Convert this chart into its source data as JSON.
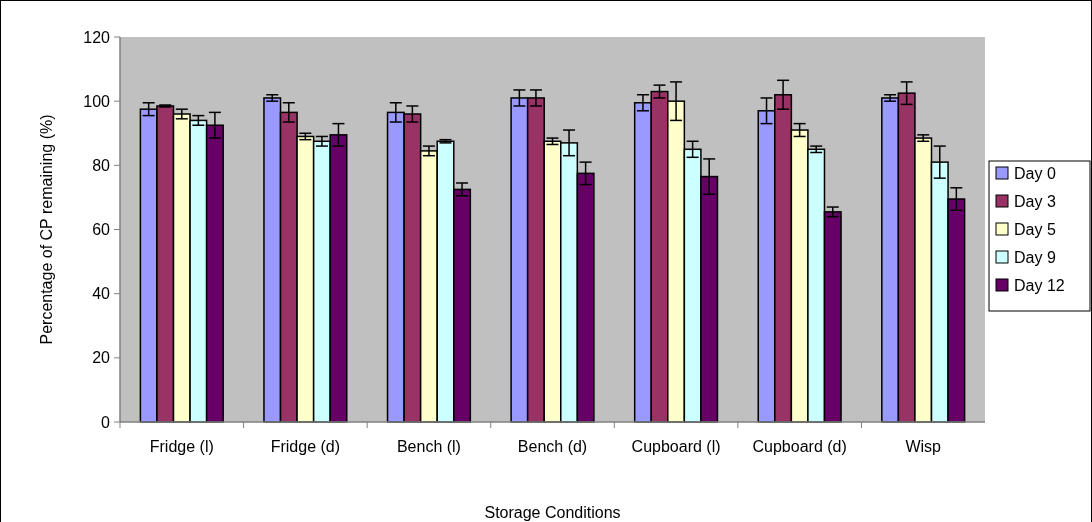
{
  "chart_data": {
    "type": "bar",
    "xlabel": "Storage Conditions",
    "ylabel": "Percentage of CP remaining (%)",
    "categories": [
      "Fridge (l)",
      "Fridge (d)",
      "Bench (l)",
      "Bench (d)",
      "Cupboard (l)",
      "Cupboard (d)",
      "Wisp"
    ],
    "series": [
      {
        "name": "Day 0",
        "color": "#9999ff",
        "values": [
          97.5,
          101,
          96.5,
          101,
          99.5,
          97,
          101
        ],
        "errors": [
          2,
          1,
          3,
          2.5,
          2.5,
          4,
          1
        ]
      },
      {
        "name": "Day 3",
        "color": "#993366",
        "values": [
          98.5,
          96.5,
          96,
          101,
          103,
          102,
          102.5
        ],
        "errors": [
          0.3,
          3,
          2.5,
          2.5,
          2,
          4.5,
          3.5
        ]
      },
      {
        "name": "Day 5",
        "color": "#ffffcc",
        "values": [
          96,
          89,
          84.5,
          87.5,
          100,
          91,
          88.5
        ],
        "errors": [
          1.5,
          1,
          1.5,
          1,
          6,
          2,
          1
        ]
      },
      {
        "name": "Day 9",
        "color": "#ccffff",
        "values": [
          94,
          87.5,
          87.5,
          87,
          85,
          85,
          81
        ],
        "errors": [
          1.5,
          1.5,
          0.5,
          4,
          2.5,
          1,
          5
        ]
      },
      {
        "name": "Day 12",
        "color": "#660066",
        "values": [
          92.5,
          89.5,
          72.5,
          77.5,
          76.5,
          65.5,
          69.5
        ],
        "errors": [
          4,
          3.5,
          2,
          3.5,
          5.5,
          1.5,
          3.5
        ]
      }
    ],
    "ylim": [
      0,
      120
    ],
    "yticks": [
      0,
      20,
      40,
      60,
      80,
      100,
      120
    ],
    "grid": false,
    "legend": "right"
  }
}
